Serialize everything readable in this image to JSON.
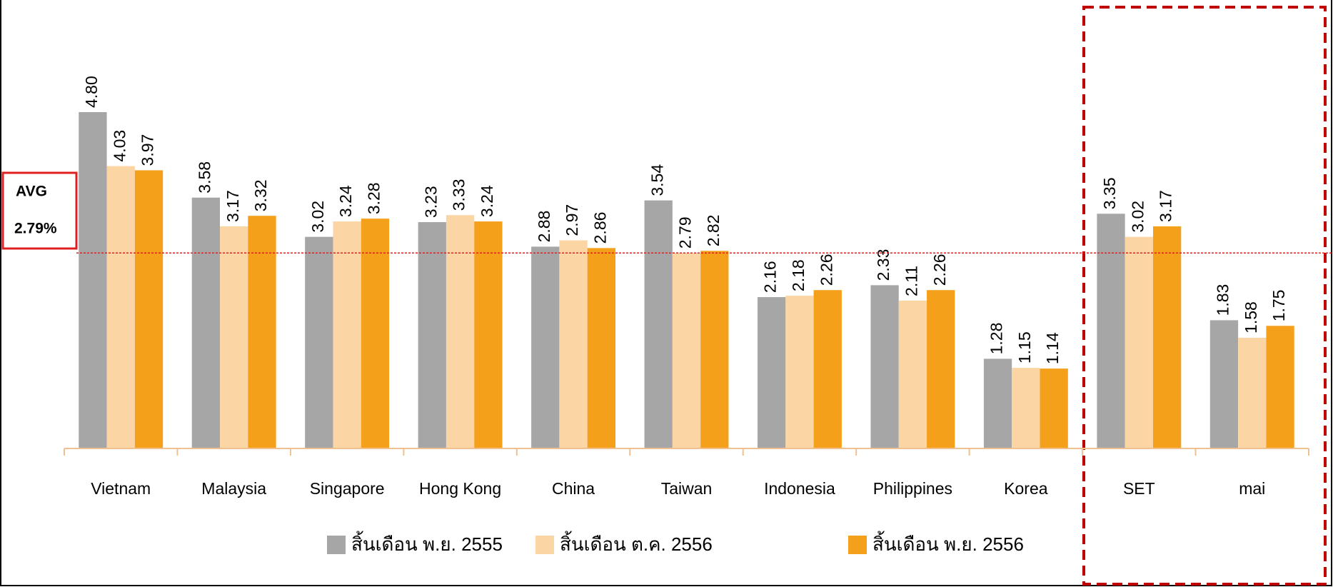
{
  "chart_data": {
    "type": "bar",
    "categories": [
      "Vietnam",
      "Malaysia",
      "Singapore",
      "Hong Kong",
      "China",
      "Taiwan",
      "Indonesia",
      "Philippines",
      "Korea",
      "SET",
      "mai"
    ],
    "series": [
      {
        "name": "สิ้นเดือน พ.ย. 2555",
        "color": "#a6a6a6",
        "values": [
          4.8,
          3.58,
          3.02,
          3.23,
          2.88,
          3.54,
          2.16,
          2.33,
          1.28,
          3.35,
          1.83
        ],
        "value_labels": [
          "4.80",
          "3.58",
          "3.02",
          "3.23",
          "2.88",
          "3.54",
          "2.16",
          "2.33",
          "1.28",
          "3.35",
          "1.83"
        ]
      },
      {
        "name": "สิ้นเดือน ต.ค. 2556",
        "color": "#fcd5a5",
        "values": [
          4.03,
          3.17,
          3.24,
          3.33,
          2.97,
          2.79,
          2.18,
          2.11,
          1.15,
          3.02,
          1.58
        ],
        "value_labels": [
          "4.03",
          "3.17",
          "3.24",
          "3.33",
          "2.97",
          "2.79",
          "2.18",
          "2.11",
          "1.15",
          "3.02",
          "1.58"
        ]
      },
      {
        "name": "สิ้นเดือน พ.ย. 2556",
        "color": "#f5a01a",
        "values": [
          3.97,
          3.32,
          3.28,
          3.24,
          2.86,
          2.82,
          2.26,
          2.26,
          1.14,
          3.17,
          1.75
        ],
        "value_labels": [
          "3.97",
          "3.32",
          "3.28",
          "3.24",
          "2.86",
          "2.82",
          "2.26",
          "2.26",
          "1.14",
          "3.17",
          "1.75"
        ]
      }
    ],
    "ylim": [
      0,
      6.4
    ],
    "avg_line": {
      "label": "AVG",
      "value": 2.79,
      "value_label": "2.79%",
      "color": "#e02020"
    }
  }
}
